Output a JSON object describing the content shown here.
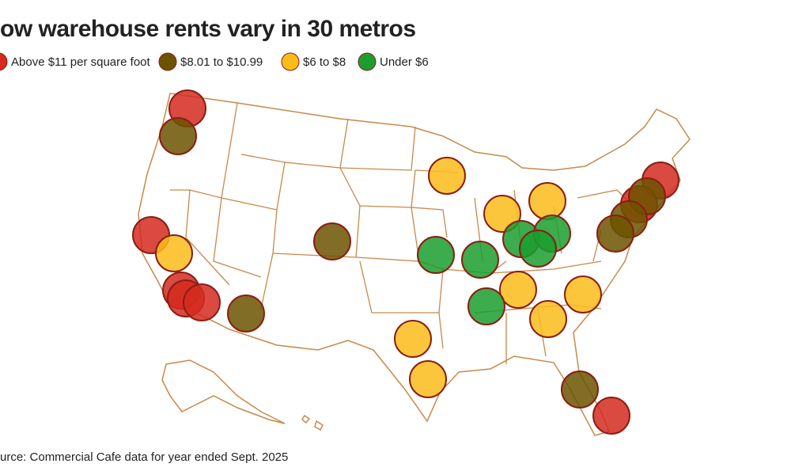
{
  "header": {
    "title": "ow warehouse rents vary in 30 metros"
  },
  "legend": {
    "items": [
      {
        "label": "Above $11 per square foot",
        "color": "#d42a1f"
      },
      {
        "label": "$8.01 to $10.99",
        "color": "#6b5300"
      },
      {
        "label": "$6 to $8",
        "color": "#fcbc1a"
      },
      {
        "label": "Under $6",
        "color": "#1a9e2e"
      }
    ]
  },
  "footer": {
    "source": "urce: Commercial Cafe data for year ended Sept. 2025"
  }
}
